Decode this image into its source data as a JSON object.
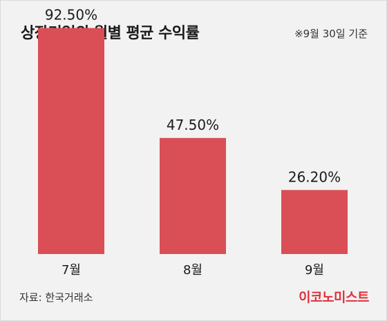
{
  "title": "상장기업의 월별 평균 수익률",
  "note": "※9월 30일 기준",
  "source": "자료: 한국거래소",
  "logo_text": "이코노미스트",
  "colors": {
    "bar": "#d94f55",
    "logo": "#e0303a",
    "background": "#f2f2f2"
  },
  "chart_data": {
    "type": "bar",
    "categories": [
      "7월",
      "8월",
      "9월"
    ],
    "values": [
      92.5,
      47.5,
      26.2
    ],
    "data_labels": [
      "92.50%",
      "47.50%",
      "26.20%"
    ],
    "ylim": [
      0,
      100
    ],
    "grid": false,
    "legend": "none"
  }
}
